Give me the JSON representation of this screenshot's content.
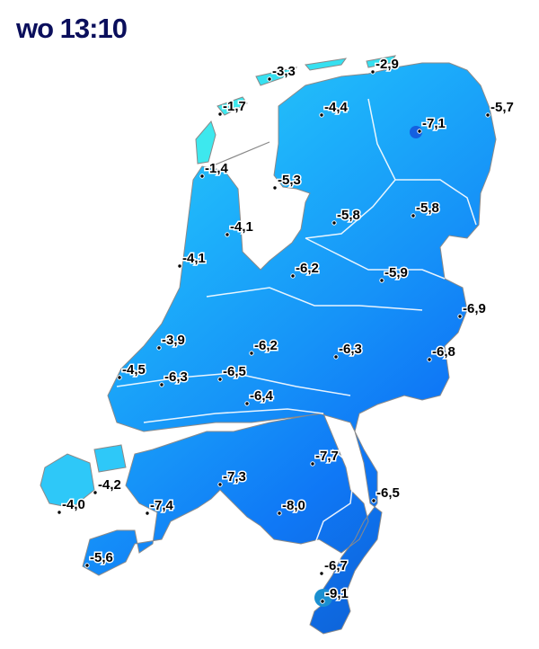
{
  "header": {
    "time_label": "wo 13:10"
  },
  "colors": {
    "title": "#0b0f5c",
    "coast_warm": "#3de8ee",
    "north": "#29c6fb",
    "mid": "#169af9",
    "south": "#0f77f7",
    "extreme": "#0e63d8"
  },
  "stations": [
    {
      "value": "-3,3"
    },
    {
      "value": "-2,9"
    },
    {
      "value": "-1,7"
    },
    {
      "value": "-4,4"
    },
    {
      "value": "-7,1"
    },
    {
      "value": "-5,7"
    },
    {
      "value": "-1,4"
    },
    {
      "value": "-5,3"
    },
    {
      "value": "-5,8"
    },
    {
      "value": "-5,8"
    },
    {
      "value": "-4,1"
    },
    {
      "value": "-4,1"
    },
    {
      "value": "-6,2"
    },
    {
      "value": "-5,9"
    },
    {
      "value": "-6,9"
    },
    {
      "value": "-3,9"
    },
    {
      "value": "-6,2"
    },
    {
      "value": "-6,3"
    },
    {
      "value": "-6,8"
    },
    {
      "value": "-4,5"
    },
    {
      "value": "-6,3"
    },
    {
      "value": "-6,5"
    },
    {
      "value": "-6,4"
    },
    {
      "value": "-7,7"
    },
    {
      "value": "-7,3"
    },
    {
      "value": "-4,2"
    },
    {
      "value": "-6,5"
    },
    {
      "value": "-7,4"
    },
    {
      "value": "-4,0"
    },
    {
      "value": "-8,0"
    },
    {
      "value": "-6,7"
    },
    {
      "value": "-5,6"
    },
    {
      "value": "-9,1"
    }
  ]
}
